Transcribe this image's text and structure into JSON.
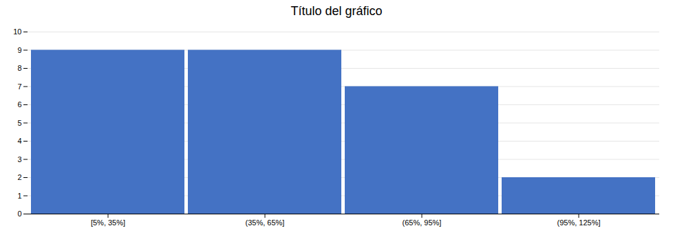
{
  "chart_data": {
    "type": "bar",
    "title": "Título del gráfico",
    "categories": [
      "[5%, 35%]",
      "(35%, 65%]",
      "(65%, 95%]",
      "(95%, 125%]"
    ],
    "values": [
      9,
      9,
      7,
      2
    ],
    "color": "#4472C4",
    "ylim": [
      0,
      10
    ],
    "yticks": [
      0,
      1,
      2,
      3,
      4,
      5,
      6,
      7,
      8,
      9,
      10
    ],
    "grid": true
  }
}
